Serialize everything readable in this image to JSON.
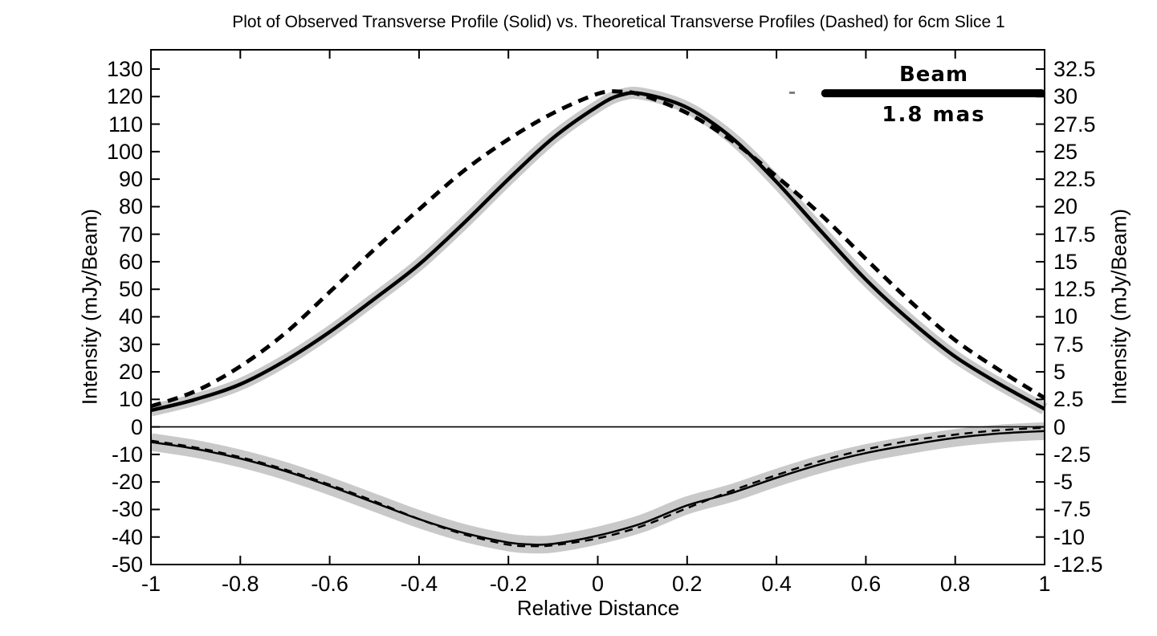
{
  "chart_data": {
    "type": "line",
    "title": "Plot of Observed Transverse Profile (Solid) vs. Theoretical Transverse Profiles (Dashed) for 6cm Slice 1",
    "xlabel": "Relative Distance",
    "ylabel_left": "Intensity (mJy/Beam)",
    "ylabel_right": "Intensity (mJy/Beam)",
    "xlim": [
      -1,
      1
    ],
    "ylim_left": [
      -50,
      137
    ],
    "ylim_right": [
      -12.5,
      34.25
    ],
    "grid": false,
    "legend_position": "none",
    "x_tick_values": [
      -1,
      -0.8,
      -0.6,
      -0.4,
      -0.2,
      0,
      0.2,
      0.4,
      0.6,
      0.8,
      1
    ],
    "x_tick_labels": [
      "-1",
      "-0.8",
      "-0.6",
      "-0.4",
      "-0.2",
      "0",
      "0.2",
      "0.4",
      "0.6",
      "0.8",
      "1"
    ],
    "left_tick_values": [
      130,
      120,
      110,
      100,
      90,
      80,
      70,
      60,
      50,
      40,
      30,
      20,
      10,
      0,
      -10,
      -20,
      -30,
      -40,
      -50
    ],
    "left_tick_labels": [
      "130",
      "120",
      "110",
      "100",
      "90",
      "80",
      "70",
      "60",
      "50",
      "40",
      "30",
      "20",
      "10",
      "0",
      "-10",
      "-20",
      "-30",
      "-40",
      "-50"
    ],
    "right_tick_values": [
      130,
      120,
      110,
      100,
      90,
      80,
      70,
      60,
      50,
      40,
      30,
      20,
      10,
      0,
      -10,
      -20,
      -30,
      -40,
      -50
    ],
    "right_tick_labels": [
      "32.5",
      "30",
      "27.5",
      "25",
      "22.5",
      "20",
      "17.5",
      "15",
      "12.5",
      "10",
      "7.5",
      "5",
      "2.5",
      "0",
      "-2.5",
      "-5",
      "-7.5",
      "-10",
      "-12.5"
    ],
    "zero_line": true,
    "series": [
      {
        "name": "Observed Transverse Profile (positive)",
        "style": "solid",
        "width": 4.5,
        "band_halfwidth": 2.2,
        "x": [
          -1,
          -0.9,
          -0.8,
          -0.7,
          -0.6,
          -0.5,
          -0.4,
          -0.3,
          -0.2,
          -0.1,
          0,
          0.05,
          0.1,
          0.2,
          0.3,
          0.4,
          0.5,
          0.6,
          0.7,
          0.8,
          0.9,
          1
        ],
        "values": [
          6,
          10,
          15.5,
          24,
          34.5,
          46.5,
          59,
          74,
          90,
          105,
          116.5,
          120.5,
          121,
          116,
          105,
          89,
          71,
          53.5,
          38.5,
          25.5,
          15.5,
          6.5
        ]
      },
      {
        "name": "Theoretical Transverse Profile (positive)",
        "style": "dashed",
        "width": 5,
        "band_halfwidth": 0,
        "x": [
          -1,
          -0.9,
          -0.8,
          -0.7,
          -0.6,
          -0.5,
          -0.4,
          -0.3,
          -0.2,
          -0.1,
          0,
          0.05,
          0.1,
          0.2,
          0.3,
          0.4,
          0.5,
          0.6,
          0.7,
          0.8,
          0.9,
          1
        ],
        "values": [
          7.5,
          13,
          22,
          34,
          49,
          64.5,
          79,
          93,
          104.5,
          114,
          121,
          121.8,
          120.5,
          114,
          104,
          91,
          77,
          61,
          45.5,
          31.5,
          20.5,
          10.5
        ]
      },
      {
        "name": "Observed Transverse Profile (negative)",
        "style": "solid",
        "width": 2.5,
        "band_halfwidth": 3.2,
        "x": [
          -1,
          -0.9,
          -0.8,
          -0.7,
          -0.6,
          -0.5,
          -0.4,
          -0.3,
          -0.2,
          -0.15,
          -0.1,
          0,
          0.1,
          0.2,
          0.3,
          0.4,
          0.5,
          0.6,
          0.7,
          0.8,
          0.9,
          1
        ],
        "values": [
          -5.5,
          -8,
          -11.5,
          -16,
          -21.5,
          -27.5,
          -33.5,
          -38.5,
          -42,
          -42.7,
          -42.5,
          -39.5,
          -35,
          -28.5,
          -24,
          -18.5,
          -13.5,
          -9.5,
          -6.5,
          -4,
          -2.4,
          -1.5
        ]
      },
      {
        "name": "Theoretical Transverse Profile (negative)",
        "style": "dashed",
        "width": 2.5,
        "band_halfwidth": 0,
        "x": [
          -1,
          -0.9,
          -0.8,
          -0.7,
          -0.6,
          -0.5,
          -0.4,
          -0.3,
          -0.2,
          -0.15,
          -0.1,
          0,
          0.1,
          0.2,
          0.3,
          0.4,
          0.5,
          0.6,
          0.7,
          0.8,
          0.9,
          1
        ],
        "values": [
          -5,
          -7.5,
          -11,
          -15.5,
          -21,
          -27,
          -33.5,
          -39,
          -42.8,
          -43.3,
          -43,
          -40.5,
          -36,
          -29.5,
          -23.2,
          -17.5,
          -12.3,
          -8.2,
          -5,
          -2.8,
          -1.2,
          -0.3
        ]
      }
    ],
    "beam_annotation": {
      "label": "Beam",
      "size_label": "1.8 mas",
      "y_value": 121.2,
      "x_start": 0.509,
      "x_end": 0.993
    },
    "colors": {
      "line": "#000000",
      "band": "#c9c9c9",
      "background": "#ffffff",
      "text": "#000000"
    }
  }
}
